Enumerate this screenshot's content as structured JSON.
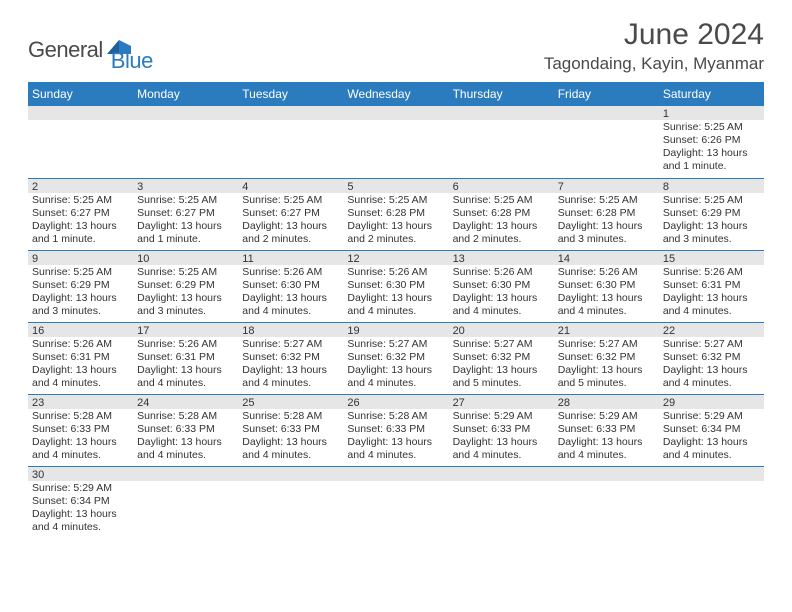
{
  "logo": {
    "general": "General",
    "blue": "Blue"
  },
  "title": {
    "month_year": "June 2024",
    "location": "Tagondaing, Kayin, Myanmar"
  },
  "colors": {
    "header_bg": "#2b7bbf",
    "header_fg": "#ffffff",
    "daynum_bg": "#e6e6e6",
    "border": "#2b7bbf",
    "text": "#333333"
  },
  "daynames": [
    "Sunday",
    "Monday",
    "Tuesday",
    "Wednesday",
    "Thursday",
    "Friday",
    "Saturday"
  ],
  "weeks": [
    [
      {
        "n": "",
        "sr": "",
        "ss": "",
        "dl": ""
      },
      {
        "n": "",
        "sr": "",
        "ss": "",
        "dl": ""
      },
      {
        "n": "",
        "sr": "",
        "ss": "",
        "dl": ""
      },
      {
        "n": "",
        "sr": "",
        "ss": "",
        "dl": ""
      },
      {
        "n": "",
        "sr": "",
        "ss": "",
        "dl": ""
      },
      {
        "n": "",
        "sr": "",
        "ss": "",
        "dl": ""
      },
      {
        "n": "1",
        "sr": "Sunrise: 5:25 AM",
        "ss": "Sunset: 6:26 PM",
        "dl": "Daylight: 13 hours and 1 minute."
      }
    ],
    [
      {
        "n": "2",
        "sr": "Sunrise: 5:25 AM",
        "ss": "Sunset: 6:27 PM",
        "dl": "Daylight: 13 hours and 1 minute."
      },
      {
        "n": "3",
        "sr": "Sunrise: 5:25 AM",
        "ss": "Sunset: 6:27 PM",
        "dl": "Daylight: 13 hours and 1 minute."
      },
      {
        "n": "4",
        "sr": "Sunrise: 5:25 AM",
        "ss": "Sunset: 6:27 PM",
        "dl": "Daylight: 13 hours and 2 minutes."
      },
      {
        "n": "5",
        "sr": "Sunrise: 5:25 AM",
        "ss": "Sunset: 6:28 PM",
        "dl": "Daylight: 13 hours and 2 minutes."
      },
      {
        "n": "6",
        "sr": "Sunrise: 5:25 AM",
        "ss": "Sunset: 6:28 PM",
        "dl": "Daylight: 13 hours and 2 minutes."
      },
      {
        "n": "7",
        "sr": "Sunrise: 5:25 AM",
        "ss": "Sunset: 6:28 PM",
        "dl": "Daylight: 13 hours and 3 minutes."
      },
      {
        "n": "8",
        "sr": "Sunrise: 5:25 AM",
        "ss": "Sunset: 6:29 PM",
        "dl": "Daylight: 13 hours and 3 minutes."
      }
    ],
    [
      {
        "n": "9",
        "sr": "Sunrise: 5:25 AM",
        "ss": "Sunset: 6:29 PM",
        "dl": "Daylight: 13 hours and 3 minutes."
      },
      {
        "n": "10",
        "sr": "Sunrise: 5:25 AM",
        "ss": "Sunset: 6:29 PM",
        "dl": "Daylight: 13 hours and 3 minutes."
      },
      {
        "n": "11",
        "sr": "Sunrise: 5:26 AM",
        "ss": "Sunset: 6:30 PM",
        "dl": "Daylight: 13 hours and 4 minutes."
      },
      {
        "n": "12",
        "sr": "Sunrise: 5:26 AM",
        "ss": "Sunset: 6:30 PM",
        "dl": "Daylight: 13 hours and 4 minutes."
      },
      {
        "n": "13",
        "sr": "Sunrise: 5:26 AM",
        "ss": "Sunset: 6:30 PM",
        "dl": "Daylight: 13 hours and 4 minutes."
      },
      {
        "n": "14",
        "sr": "Sunrise: 5:26 AM",
        "ss": "Sunset: 6:30 PM",
        "dl": "Daylight: 13 hours and 4 minutes."
      },
      {
        "n": "15",
        "sr": "Sunrise: 5:26 AM",
        "ss": "Sunset: 6:31 PM",
        "dl": "Daylight: 13 hours and 4 minutes."
      }
    ],
    [
      {
        "n": "16",
        "sr": "Sunrise: 5:26 AM",
        "ss": "Sunset: 6:31 PM",
        "dl": "Daylight: 13 hours and 4 minutes."
      },
      {
        "n": "17",
        "sr": "Sunrise: 5:26 AM",
        "ss": "Sunset: 6:31 PM",
        "dl": "Daylight: 13 hours and 4 minutes."
      },
      {
        "n": "18",
        "sr": "Sunrise: 5:27 AM",
        "ss": "Sunset: 6:32 PM",
        "dl": "Daylight: 13 hours and 4 minutes."
      },
      {
        "n": "19",
        "sr": "Sunrise: 5:27 AM",
        "ss": "Sunset: 6:32 PM",
        "dl": "Daylight: 13 hours and 4 minutes."
      },
      {
        "n": "20",
        "sr": "Sunrise: 5:27 AM",
        "ss": "Sunset: 6:32 PM",
        "dl": "Daylight: 13 hours and 5 minutes."
      },
      {
        "n": "21",
        "sr": "Sunrise: 5:27 AM",
        "ss": "Sunset: 6:32 PM",
        "dl": "Daylight: 13 hours and 5 minutes."
      },
      {
        "n": "22",
        "sr": "Sunrise: 5:27 AM",
        "ss": "Sunset: 6:32 PM",
        "dl": "Daylight: 13 hours and 4 minutes."
      }
    ],
    [
      {
        "n": "23",
        "sr": "Sunrise: 5:28 AM",
        "ss": "Sunset: 6:33 PM",
        "dl": "Daylight: 13 hours and 4 minutes."
      },
      {
        "n": "24",
        "sr": "Sunrise: 5:28 AM",
        "ss": "Sunset: 6:33 PM",
        "dl": "Daylight: 13 hours and 4 minutes."
      },
      {
        "n": "25",
        "sr": "Sunrise: 5:28 AM",
        "ss": "Sunset: 6:33 PM",
        "dl": "Daylight: 13 hours and 4 minutes."
      },
      {
        "n": "26",
        "sr": "Sunrise: 5:28 AM",
        "ss": "Sunset: 6:33 PM",
        "dl": "Daylight: 13 hours and 4 minutes."
      },
      {
        "n": "27",
        "sr": "Sunrise: 5:29 AM",
        "ss": "Sunset: 6:33 PM",
        "dl": "Daylight: 13 hours and 4 minutes."
      },
      {
        "n": "28",
        "sr": "Sunrise: 5:29 AM",
        "ss": "Sunset: 6:33 PM",
        "dl": "Daylight: 13 hours and 4 minutes."
      },
      {
        "n": "29",
        "sr": "Sunrise: 5:29 AM",
        "ss": "Sunset: 6:34 PM",
        "dl": "Daylight: 13 hours and 4 minutes."
      }
    ],
    [
      {
        "n": "30",
        "sr": "Sunrise: 5:29 AM",
        "ss": "Sunset: 6:34 PM",
        "dl": "Daylight: 13 hours and 4 minutes."
      },
      {
        "n": "",
        "sr": "",
        "ss": "",
        "dl": ""
      },
      {
        "n": "",
        "sr": "",
        "ss": "",
        "dl": ""
      },
      {
        "n": "",
        "sr": "",
        "ss": "",
        "dl": ""
      },
      {
        "n": "",
        "sr": "",
        "ss": "",
        "dl": ""
      },
      {
        "n": "",
        "sr": "",
        "ss": "",
        "dl": ""
      },
      {
        "n": "",
        "sr": "",
        "ss": "",
        "dl": ""
      }
    ]
  ]
}
